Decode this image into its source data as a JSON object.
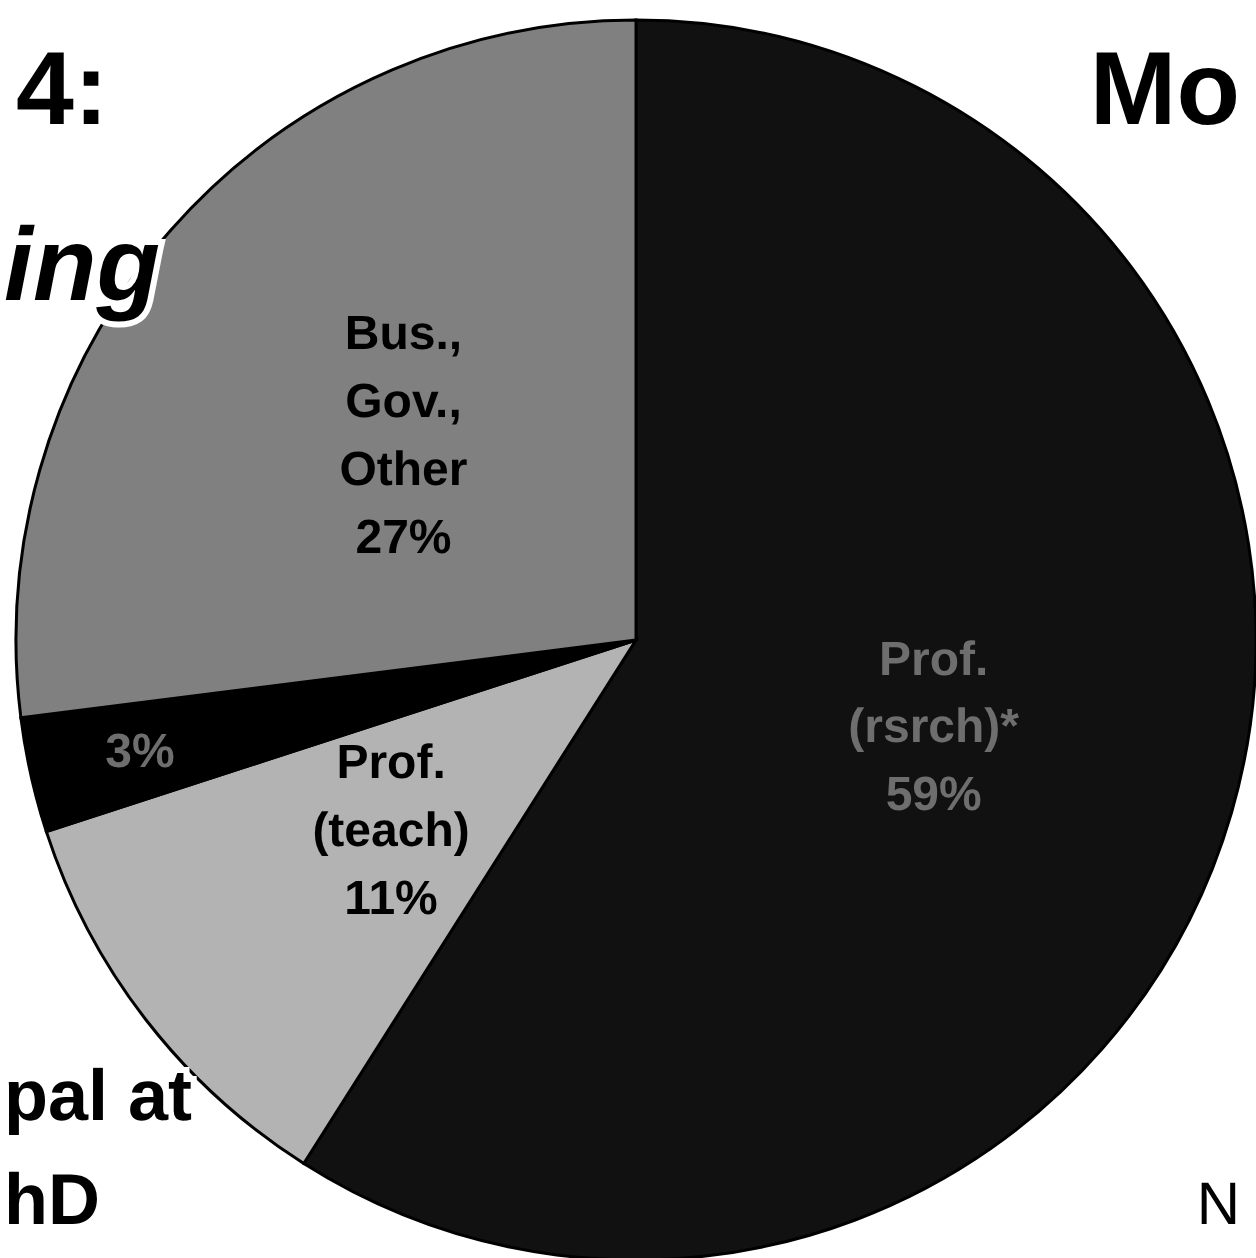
{
  "chart_data": {
    "type": "pie",
    "categories": [
      "Prof. (rsrch)*",
      "Prof. (teach)",
      null,
      "Bus., Gov., Other"
    ],
    "values": [
      59,
      11,
      3,
      27
    ],
    "colors": [
      "#111111",
      "#b3b3b3",
      "#000000",
      "#808080"
    ],
    "value_labels": [
      "59%",
      "11%",
      "3%",
      "27%"
    ],
    "annotations": [
      "4:",
      "ing",
      "Mo",
      "pal at",
      "hD",
      "N"
    ]
  }
}
